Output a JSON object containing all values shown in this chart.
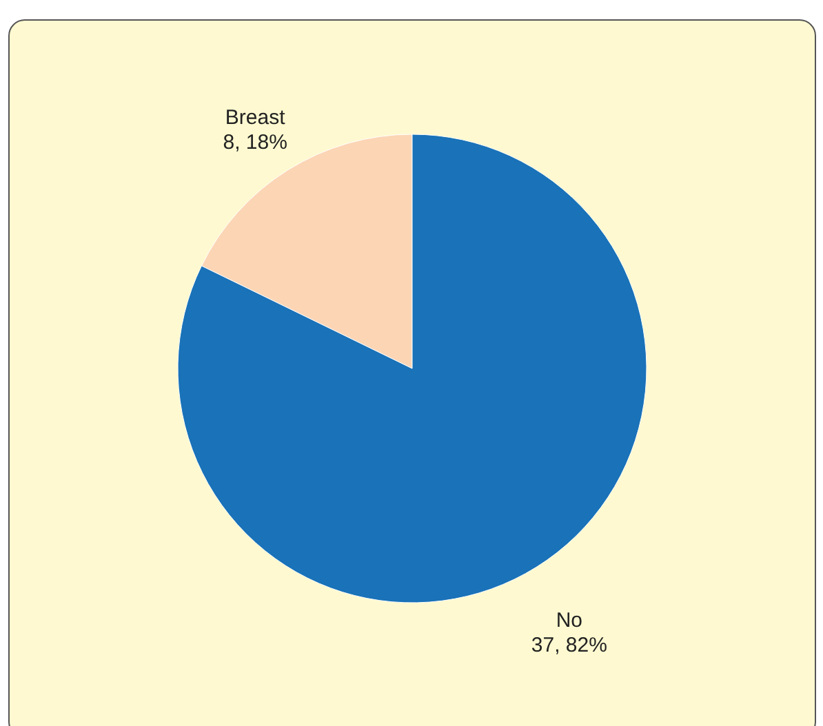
{
  "chart_data": {
    "type": "pie",
    "categories": [
      "Breast",
      "No"
    ],
    "values": [
      8,
      37
    ],
    "colors": [
      "#fcd5b5",
      "#1a72b8"
    ],
    "value_labels": [
      "8, 18%",
      "37, 82%"
    ],
    "legend": false
  }
}
